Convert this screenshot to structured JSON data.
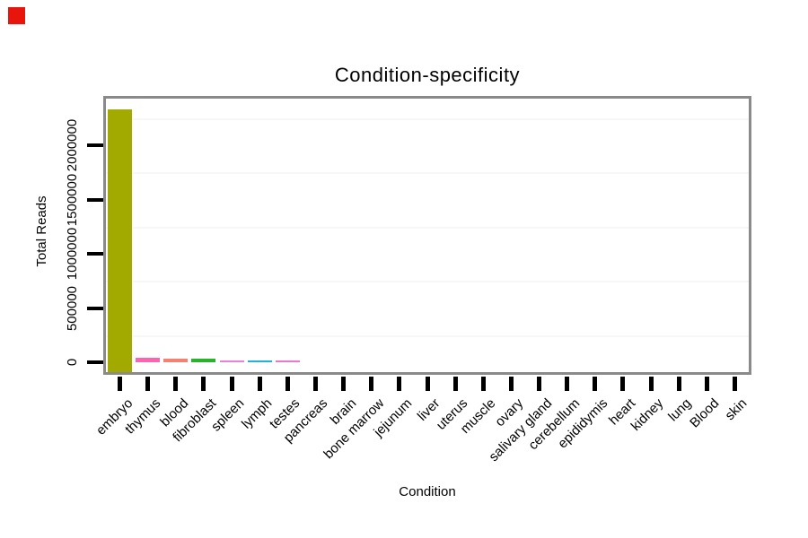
{
  "marker": {
    "name": "red-square",
    "color": "#e8150d"
  },
  "chart_data": {
    "type": "bar",
    "title": "Condition-specificity",
    "xlabel": "Condition",
    "ylabel": "Total Reads",
    "categories": [
      "embryo",
      "thymus",
      "blood",
      "fibroblast",
      "spleen",
      "lymph",
      "testes",
      "pancreas",
      "brain",
      "bone marrow",
      "jejunum",
      "liver",
      "uterus",
      "muscle",
      "ovary",
      "salivary gland",
      "cerebellum",
      "epididymis",
      "heart",
      "kidney",
      "lung",
      "Blood",
      "skin"
    ],
    "values": [
      2330000,
      45000,
      33000,
      37000,
      17000,
      16000,
      16000,
      0,
      0,
      0,
      0,
      0,
      0,
      0,
      0,
      0,
      0,
      0,
      0,
      0,
      0,
      0,
      0
    ],
    "bar_colors": [
      "#a2aa00",
      "#ff63b0",
      "#f58270",
      "#28b428",
      "#ea80d8",
      "#20b2d8",
      "#ea78d0",
      null,
      null,
      null,
      null,
      null,
      null,
      null,
      null,
      null,
      null,
      null,
      null,
      null,
      null,
      null,
      null
    ],
    "yticks": [
      0,
      500000,
      1000000,
      1500000,
      2000000
    ],
    "ytick_labels": [
      "0",
      "500000",
      "1000000",
      "1500000",
      "2000000"
    ],
    "ylim": [
      0,
      2450000
    ],
    "minor_gridlines": [
      250000,
      750000,
      1250000,
      1750000,
      2250000
    ],
    "grid": "faint horizontal minor gridlines only",
    "legend": "none",
    "frame_color": "#8a8a8a",
    "tick_color": "#000000"
  }
}
